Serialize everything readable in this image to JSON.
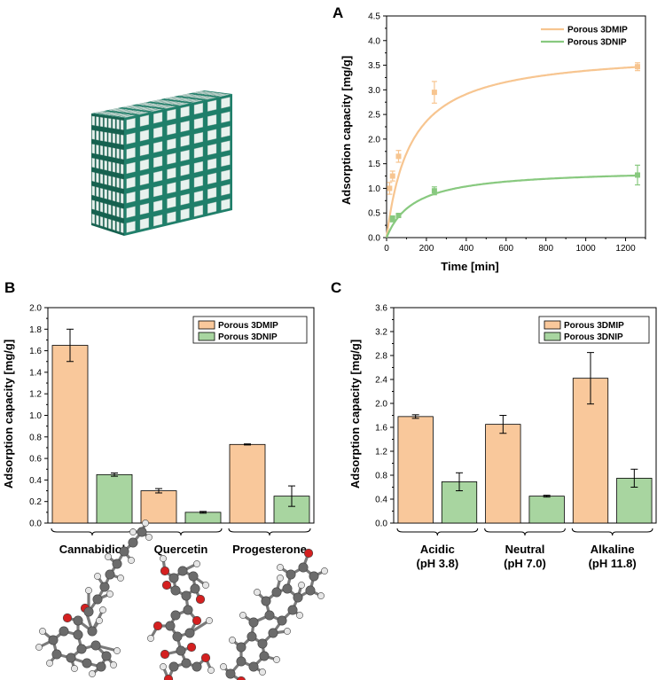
{
  "panels": {
    "a": {
      "letter": "A"
    },
    "b": {
      "letter": "B"
    },
    "c": {
      "letter": "C"
    }
  },
  "colors": {
    "mip_fill": "#F9C89B",
    "nip_fill": "#A8D5A0",
    "mip_line": "#F7C590",
    "nip_line": "#88C97F",
    "cube_face": "#1F7F6A",
    "cube_face_dark": "#15614F",
    "cube_pore": "#E8F2EE",
    "atom_carbon": "#6B6B6B",
    "atom_hydrogen": "#E6E6E6",
    "atom_oxygen": "#D42020"
  },
  "illustrations": {
    "scaffold": "porous-cube-scaffold",
    "molecules": [
      "cannabidiol-molecule",
      "quercetin-molecule",
      "progesterone-molecule"
    ]
  },
  "chart_data": [
    {
      "id": "A",
      "type": "line",
      "xlabel": "Time [min]",
      "ylabel": "Adsorption capacity [mg/g]",
      "xlim": [
        0,
        1300
      ],
      "ylim": [
        0,
        4.5
      ],
      "xticks": [
        0,
        200,
        400,
        600,
        800,
        1000,
        1200
      ],
      "yticks": [
        0.0,
        0.5,
        1.0,
        1.5,
        2.0,
        2.5,
        3.0,
        3.5,
        4.0,
        4.5
      ],
      "ytick_labels": [
        "0.0",
        "0.5",
        "1.0",
        "1.5",
        "2.0",
        "2.5",
        "3.0",
        "3.5",
        "4.0",
        "4.5"
      ],
      "legend_position": "top-right",
      "series": [
        {
          "name": "Porous 3DMIP",
          "color": "#F7C590",
          "points": [
            {
              "x": 15,
              "y": 1.0,
              "err": 0.12
            },
            {
              "x": 30,
              "y": 1.25,
              "err": 0.1
            },
            {
              "x": 60,
              "y": 1.65,
              "err": 0.12
            },
            {
              "x": 240,
              "y": 2.95,
              "err": 0.22
            },
            {
              "x": 1260,
              "y": 3.47,
              "err": 0.08
            }
          ],
          "fit": {
            "qmax": 3.8,
            "k": 0.0082
          }
        },
        {
          "name": "Porous 3DNIP",
          "color": "#88C97F",
          "points": [
            {
              "x": 30,
              "y": 0.38,
              "err": 0.06
            },
            {
              "x": 60,
              "y": 0.45,
              "err": 0.03
            },
            {
              "x": 240,
              "y": 0.95,
              "err": 0.08
            },
            {
              "x": 1260,
              "y": 1.27,
              "err": 0.2
            }
          ],
          "fit": {
            "qmax": 1.4,
            "k": 0.0072
          }
        }
      ]
    },
    {
      "id": "B",
      "type": "bar",
      "xlabel": "",
      "ylabel": "Adsorption capacity [mg/g]",
      "ylim": [
        0,
        2.0
      ],
      "yticks": [
        0.0,
        0.2,
        0.4,
        0.6,
        0.8,
        1.0,
        1.2,
        1.4,
        1.6,
        1.8,
        2.0
      ],
      "ytick_labels": [
        "0.0",
        "0.2",
        "0.4",
        "0.6",
        "0.8",
        "1.0",
        "1.2",
        "1.4",
        "1.6",
        "1.8",
        "2.0"
      ],
      "categories": [
        [
          "Cannabidiol"
        ],
        [
          "Quercetin"
        ],
        [
          "Progesterone"
        ]
      ],
      "legend_position": "top-right",
      "series": [
        {
          "name": "Porous 3DMIP",
          "color": "#F9C89B",
          "values": [
            1.65,
            0.3,
            0.73
          ],
          "errors": [
            0.15,
            0.02,
            0.005
          ]
        },
        {
          "name": "Porous 3DNIP",
          "color": "#A8D5A0",
          "values": [
            0.45,
            0.1,
            0.25
          ],
          "errors": [
            0.015,
            0.008,
            0.095
          ]
        }
      ]
    },
    {
      "id": "C",
      "type": "bar",
      "xlabel": "",
      "ylabel": "Adsorption capacity [mg/g]",
      "ylim": [
        0,
        3.6
      ],
      "yticks": [
        0.0,
        0.4,
        0.8,
        1.2,
        1.6,
        2.0,
        2.4,
        2.8,
        3.2,
        3.6
      ],
      "ytick_labels": [
        "0.0",
        "0.4",
        "0.8",
        "1.2",
        "1.6",
        "2.0",
        "2.4",
        "2.8",
        "3.2",
        "3.6"
      ],
      "categories": [
        [
          "Acidic",
          "(pH 3.8)"
        ],
        [
          "Neutral",
          "(pH 7.0)"
        ],
        [
          "Alkaline",
          "(pH 11.8)"
        ]
      ],
      "legend_position": "top-right",
      "series": [
        {
          "name": "Porous 3DMIP",
          "color": "#F9C89B",
          "values": [
            1.78,
            1.65,
            2.42
          ],
          "errors": [
            0.03,
            0.15,
            0.43
          ]
        },
        {
          "name": "Porous 3DNIP",
          "color": "#A8D5A0",
          "values": [
            0.69,
            0.45,
            0.75
          ],
          "errors": [
            0.15,
            0.015,
            0.15
          ]
        }
      ]
    }
  ]
}
